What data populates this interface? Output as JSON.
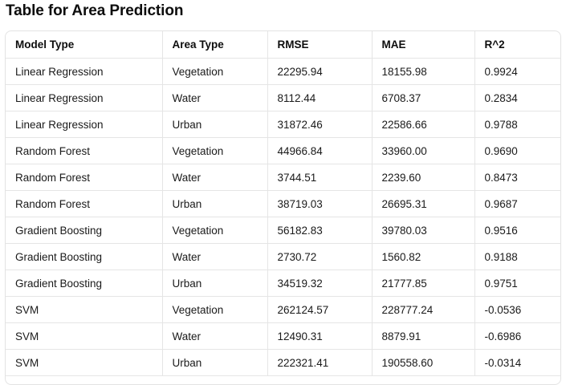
{
  "title": "Table for Area Prediction",
  "table": {
    "headers": [
      "Model Type",
      "Area Type",
      "RMSE",
      "MAE",
      "R^2"
    ],
    "rows": [
      [
        "Linear Regression",
        "Vegetation",
        "22295.94",
        "18155.98",
        "0.9924"
      ],
      [
        "Linear Regression",
        "Water",
        "8112.44",
        "6708.37",
        "0.2834"
      ],
      [
        "Linear Regression",
        "Urban",
        "31872.46",
        "22586.66",
        "0.9788"
      ],
      [
        "Random Forest",
        "Vegetation",
        "44966.84",
        "33960.00",
        "0.9690"
      ],
      [
        "Random Forest",
        "Water",
        "3744.51",
        "2239.60",
        "0.8473"
      ],
      [
        "Random Forest",
        "Urban",
        "38719.03",
        "26695.31",
        "0.9687"
      ],
      [
        "Gradient Boosting",
        "Vegetation",
        "56182.83",
        "39780.03",
        "0.9516"
      ],
      [
        "Gradient Boosting",
        "Water",
        "2730.72",
        "1560.82",
        "0.9188"
      ],
      [
        "Gradient Boosting",
        "Urban",
        "34519.32",
        "21777.85",
        "0.9751"
      ],
      [
        "SVM",
        "Vegetation",
        "262124.57",
        "228777.24",
        "-0.0536"
      ],
      [
        "SVM",
        "Water",
        "12490.31",
        "8879.91",
        "-0.6986"
      ],
      [
        "SVM",
        "Urban",
        "222321.41",
        "190558.60",
        "-0.0314"
      ]
    ]
  }
}
